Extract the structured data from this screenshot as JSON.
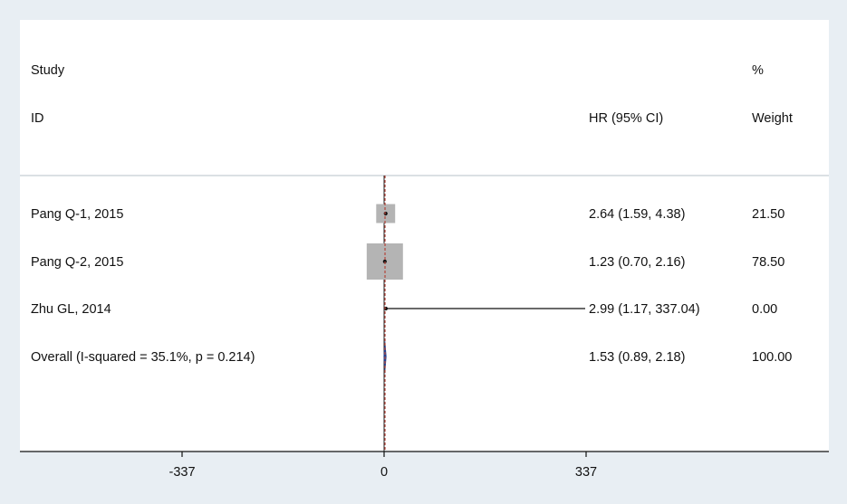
{
  "chart_data": {
    "type": "forest",
    "title": "",
    "header": {
      "study_line1": "Study",
      "study_line2": "ID",
      "effect_label": "HR (95% CI)",
      "weight_line1": "%",
      "weight_line2": "Weight"
    },
    "xlim": [
      -410,
      410
    ],
    "xticks": [
      -337,
      0,
      337
    ],
    "xtick_labels": [
      "-337",
      "0",
      "337"
    ],
    "reference_line": 0,
    "overall_line": 1.53,
    "colors": {
      "panel": "#ffffff",
      "background": "#e8eef3",
      "study_box": "#b4b4b4",
      "ci_line": "#111111",
      "overall_diamond": "#1f3f8f",
      "dashed_line": "#b5453a"
    },
    "studies": [
      {
        "label": "Pang Q-1, 2015",
        "hr": 2.64,
        "lo": 1.59,
        "hi": 4.38,
        "weight": 21.5,
        "ci_text": "2.64 (1.59, 4.38)",
        "weight_text": "21.50"
      },
      {
        "label": "Pang Q-2, 2015",
        "hr": 1.23,
        "lo": 0.7,
        "hi": 2.16,
        "weight": 78.5,
        "ci_text": "1.23 (0.70, 2.16)",
        "weight_text": "78.50"
      },
      {
        "label": "Zhu GL, 2014",
        "hr": 2.99,
        "lo": 1.17,
        "hi": 337.04,
        "weight": 0.0,
        "ci_text": "2.99 (1.17, 337.04)",
        "weight_text": "0.00"
      }
    ],
    "overall": {
      "label": "Overall  (I-squared = 35.1%, p = 0.214)",
      "hr": 1.53,
      "lo": 0.89,
      "hi": 2.18,
      "ci_text": "1.53 (0.89, 2.18)",
      "weight_text": "100.00"
    }
  }
}
